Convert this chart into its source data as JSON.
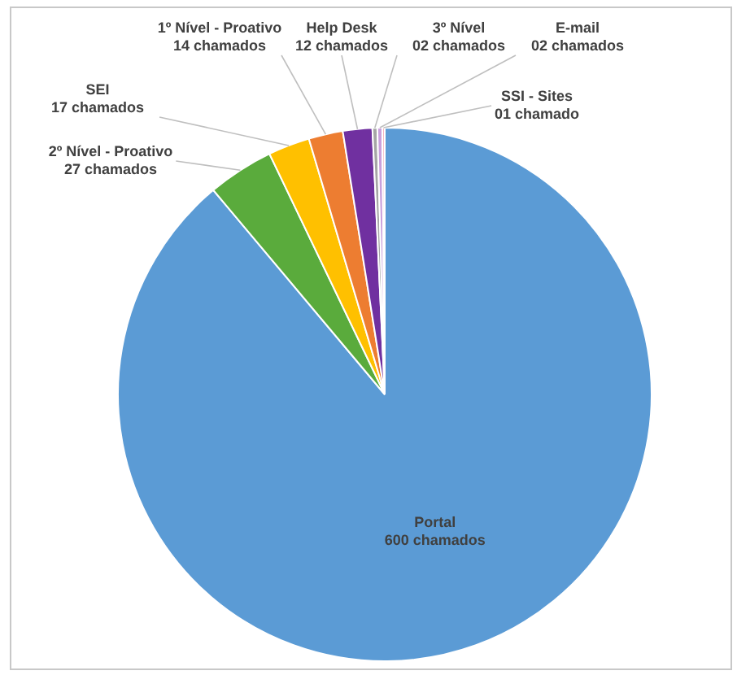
{
  "chart_data": {
    "type": "pie",
    "categories": [
      "Portal",
      "2º Nível - Proativo",
      "SEI",
      "1º Nível - Proativo",
      "Help Desk",
      "3º Nível",
      "E-mail",
      "SSI - Sites"
    ],
    "values": [
      600,
      27,
      17,
      14,
      12,
      2,
      2,
      1
    ],
    "value_labels": [
      "600 chamados",
      "27 chamados",
      "17 chamados",
      "14 chamados",
      "12 chamados",
      "02 chamados",
      "02 chamados",
      "01 chamado"
    ],
    "colors": [
      "#5b9bd5",
      "#5aab3c",
      "#ffc000",
      "#ed7d31",
      "#7030a0",
      "#a5a5a5",
      "#c9a0dc",
      "#f4b6c2"
    ],
    "legend": false
  }
}
